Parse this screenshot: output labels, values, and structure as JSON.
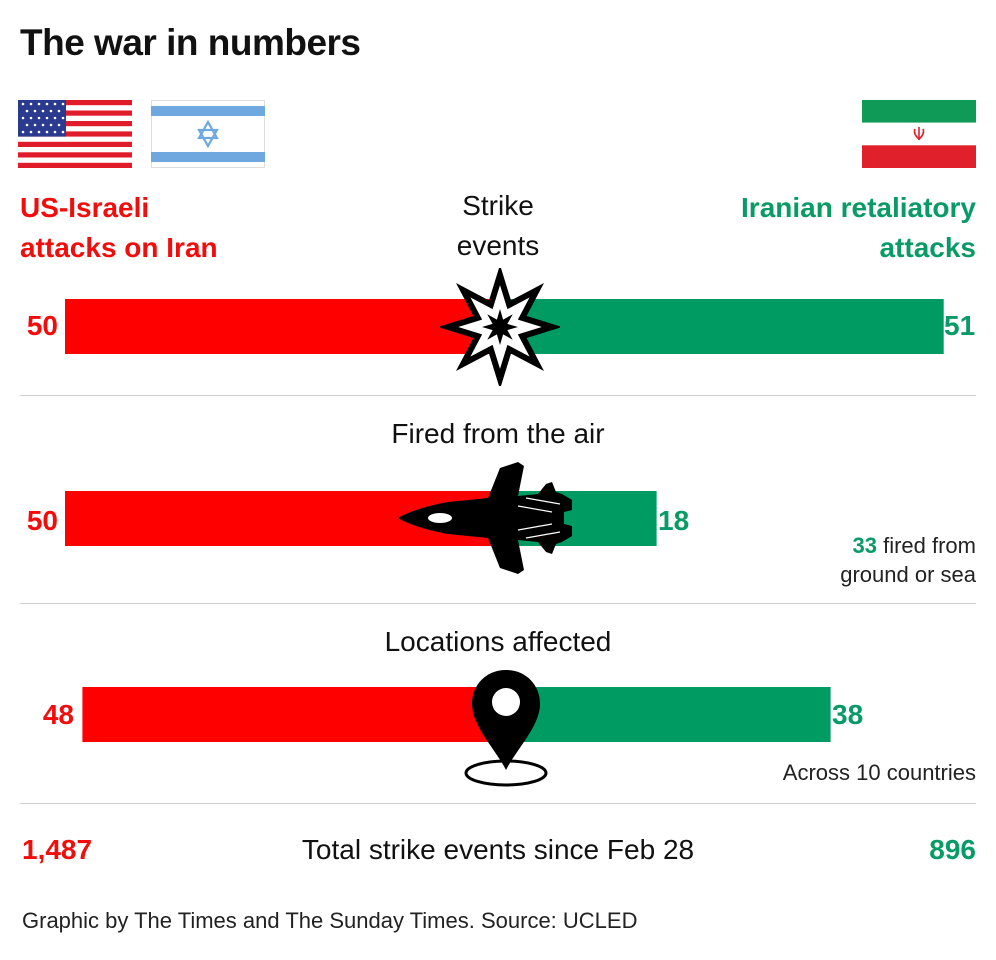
{
  "title": "The war in numbers",
  "left_label_line1": "US-Israeli",
  "left_label_line2": "attacks on Iran",
  "right_label_line1": "Iranian retaliatory",
  "right_label_line2": "attacks",
  "colors": {
    "us_israel": "#ff0000",
    "iran": "#009a63",
    "text_red": "#f20d0d",
    "text_green": "#089a67"
  },
  "flags": [
    "us-flag-icon",
    "israel-flag-icon",
    "iran-flag-icon"
  ],
  "chart_data": [
    {
      "type": "bar",
      "section": "Strike events",
      "label_line1": "Strike",
      "label_line2": "events",
      "icon": "explosion-icon",
      "series": [
        {
          "name": "US-Israeli attacks on Iran",
          "value": 50
        },
        {
          "name": "Iranian retaliatory attacks",
          "value": 51
        }
      ]
    },
    {
      "type": "bar",
      "section": "Fired from the air",
      "label": "Fired from the air",
      "icon": "fighter-jet-icon",
      "series": [
        {
          "name": "US-Israeli attacks on Iran",
          "value": 50
        },
        {
          "name": "Iranian retaliatory attacks",
          "value": 18
        }
      ],
      "note_value": "33",
      "note_text_line1": " fired from",
      "note_text_line2": "ground or sea"
    },
    {
      "type": "bar",
      "section": "Locations affected",
      "label": "Locations affected",
      "icon": "location-pin-icon",
      "series": [
        {
          "name": "US-Israeli attacks on Iran",
          "value": 48
        },
        {
          "name": "Iranian retaliatory attacks",
          "value": 38
        }
      ],
      "note_text": "Across 10 countries"
    }
  ],
  "totals": {
    "left_value": "1,487",
    "label": "Total strike events since Feb 28",
    "right_value": "896"
  },
  "footer": "Graphic by The Times and The Sunday Times. Source: UCLED"
}
